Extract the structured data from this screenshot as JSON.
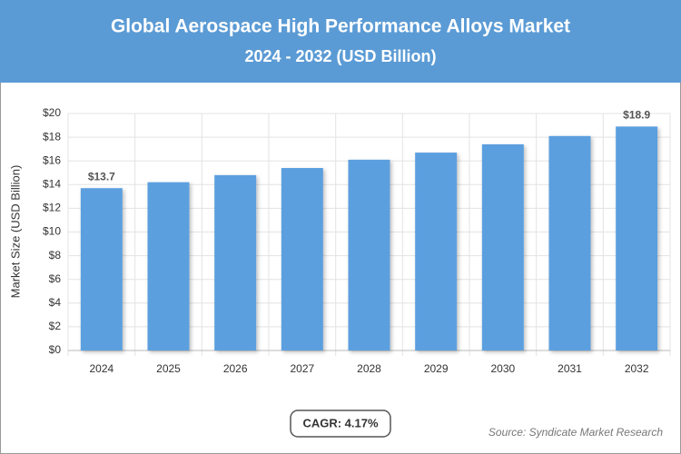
{
  "chart_data": {
    "type": "bar",
    "title": "Global Aerospace High Performance Alloys Market",
    "subtitle": "2024 - 2032 (USD Billion)",
    "y_label": "Market Size (USD Billion)",
    "categories": [
      "2024",
      "2025",
      "2026",
      "2027",
      "2028",
      "2029",
      "2030",
      "2031",
      "2032"
    ],
    "values": [
      13.7,
      14.2,
      14.8,
      15.4,
      16.1,
      16.7,
      17.4,
      18.1,
      18.9
    ],
    "value_labels": [
      "$13.7",
      null,
      null,
      null,
      null,
      null,
      null,
      null,
      "$18.9"
    ],
    "color": "#5b9fdf",
    "ylim": [
      0,
      20
    ],
    "yticks": [
      {
        "value": 0,
        "label": "$0"
      },
      {
        "value": 2,
        "label": "$2"
      },
      {
        "value": 4,
        "label": "$4"
      },
      {
        "value": 6,
        "label": "$6"
      },
      {
        "value": 8,
        "label": "$8"
      },
      {
        "value": 10,
        "label": "$10"
      },
      {
        "value": 12,
        "label": "$12"
      },
      {
        "value": 14,
        "label": "$14"
      },
      {
        "value": 16,
        "label": "$16"
      },
      {
        "value": 18,
        "label": "$18"
      },
      {
        "value": 20,
        "label": "$20"
      }
    ],
    "grid": true,
    "annotations": {
      "cagr": "CAGR: 4.17%",
      "source": "Source: Syndicate Market Research"
    }
  }
}
